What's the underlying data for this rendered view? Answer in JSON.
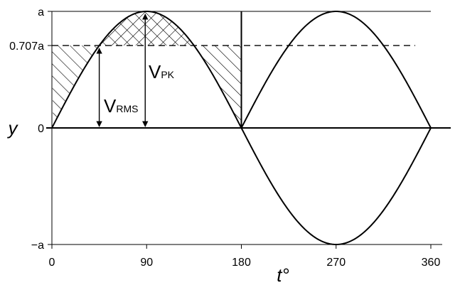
{
  "chart_data": {
    "type": "line",
    "title": "",
    "xlabel": "t°",
    "ylabel": "y",
    "xlim": [
      0,
      360
    ],
    "ylim": [
      -1,
      1
    ],
    "x_ticks": [
      0,
      90,
      180,
      270,
      360
    ],
    "x_tick_labels": [
      "0",
      "90",
      "180",
      "270",
      "360"
    ],
    "y_ticks": [
      -1,
      0,
      0.707,
      1
    ],
    "y_tick_labels": [
      "−a",
      "0",
      "0.707a",
      "a"
    ],
    "series": [
      {
        "function": "sin",
        "amplitude": 1,
        "x_range": [
          0,
          180
        ],
        "note_visible": "positive half-cycle"
      },
      {
        "function": "sin",
        "amplitude": 1,
        "x_range": [
          0,
          360
        ]
      }
    ],
    "rms_level": 0.707,
    "peak_level": 1,
    "annotations": {
      "vrms_main": "V",
      "vrms_sub": "RMS",
      "vpk_main": "V",
      "vpk_sub": "PK"
    },
    "grid": false
  }
}
